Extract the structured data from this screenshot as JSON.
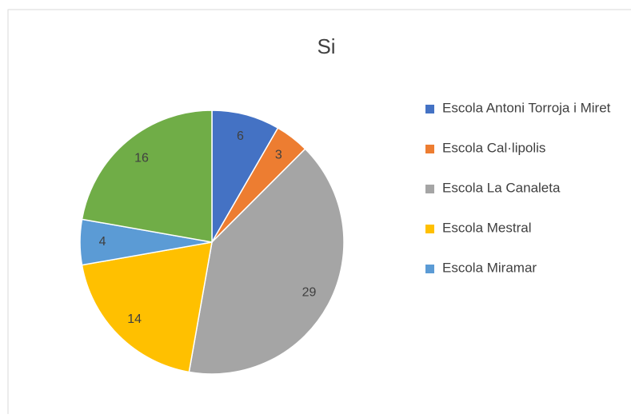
{
  "chart_data": {
    "type": "pie",
    "title": "Si",
    "categories": [
      "Escola Antoni Torroja i Miret",
      "Escola Cal·lipolis",
      "Escola La Canaleta",
      "Escola Mestral",
      "Escola Miramar",
      null
    ],
    "values": [
      6,
      3,
      29,
      14,
      4,
      16
    ],
    "colors": [
      "#4472c4",
      "#ed7d31",
      "#a5a5a5",
      "#ffc000",
      "#5b9bd5",
      "#70ad47"
    ]
  }
}
